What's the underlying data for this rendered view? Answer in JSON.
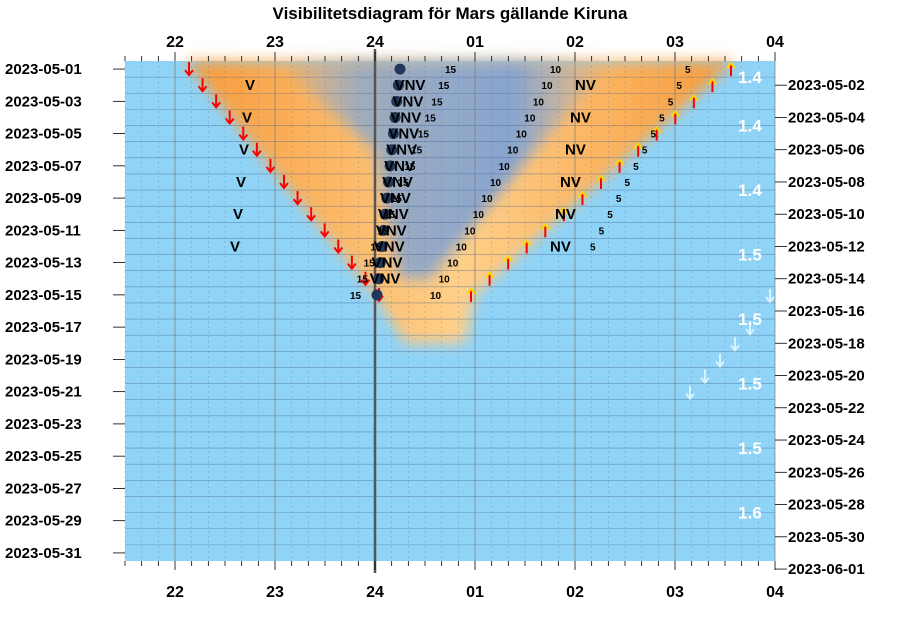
{
  "chart_data": {
    "type": "visibility-diagram",
    "title": "Visibilitetsdiagram för Mars gällande Kiruna",
    "hour_labels": [
      "22",
      "23",
      "24",
      "01",
      "02",
      "03",
      "04"
    ],
    "hour_values": [
      22,
      23,
      24,
      25,
      26,
      27,
      28
    ],
    "x_range": [
      21.5,
      28
    ],
    "days": 31,
    "left_date_labels": [
      "2023-05-01",
      "2023-05-03",
      "2023-05-05",
      "2023-05-07",
      "2023-05-09",
      "2023-05-11",
      "2023-05-13",
      "2023-05-15",
      "2023-05-17",
      "2023-05-19",
      "2023-05-21",
      "2023-05-23",
      "2023-05-25",
      "2023-05-27",
      "2023-05-29",
      "2023-05-31"
    ],
    "right_date_labels": [
      "2023-05-02",
      "2023-05-04",
      "2023-05-06",
      "2023-05-08",
      "2023-05-10",
      "2023-05-12",
      "2023-05-14",
      "2023-05-16",
      "2023-05-18",
      "2023-05-20",
      "2023-05-22",
      "2023-05-24",
      "2023-05-26",
      "2023-05-28",
      "2023-05-30",
      "2023-06-01"
    ],
    "sunset_first": 22.1,
    "sunset_last": 24.0,
    "sunset_last_day": 15,
    "sunrise_first": 27.6,
    "sunrise_last": 25.0,
    "sunrise_last_day": 15,
    "mars_set_first": 26.0,
    "mars_set_last": 26.85,
    "mars_dot_first": 24.25,
    "mars_dot_last": 24.02,
    "mars_dot_last_day": 15,
    "direction_labels": {
      "west": "V",
      "west_northwest": "VNV",
      "northwest": "NV"
    },
    "altitude_labels": [
      "15",
      "10",
      "5"
    ],
    "magnitudes": [
      {
        "day": 1.5,
        "value": "1.4"
      },
      {
        "day": 4.5,
        "value": "1.4"
      },
      {
        "day": 8.5,
        "value": "1.4"
      },
      {
        "day": 12.5,
        "value": "1.5"
      },
      {
        "day": 16.5,
        "value": "1.5"
      },
      {
        "day": 20.5,
        "value": "1.5"
      },
      {
        "day": 24.5,
        "value": "1.5"
      },
      {
        "day": 28.5,
        "value": "1.6"
      }
    ],
    "colors": {
      "day_sky": "#8fd3f7",
      "twilight": "#f7a040",
      "twilight_core": "#ffcc70",
      "mars_band": "#7aa0d8",
      "mars_dot": "#22385a",
      "sunset_arrow": "#ff0000",
      "sunrise_arrow": "#ff0000",
      "sunrise_arrow_tip": "#ffd700",
      "moon_arrow": "#d8f2ff",
      "midnight_line": "#555555",
      "magnitude_text": "#ffffff"
    }
  }
}
